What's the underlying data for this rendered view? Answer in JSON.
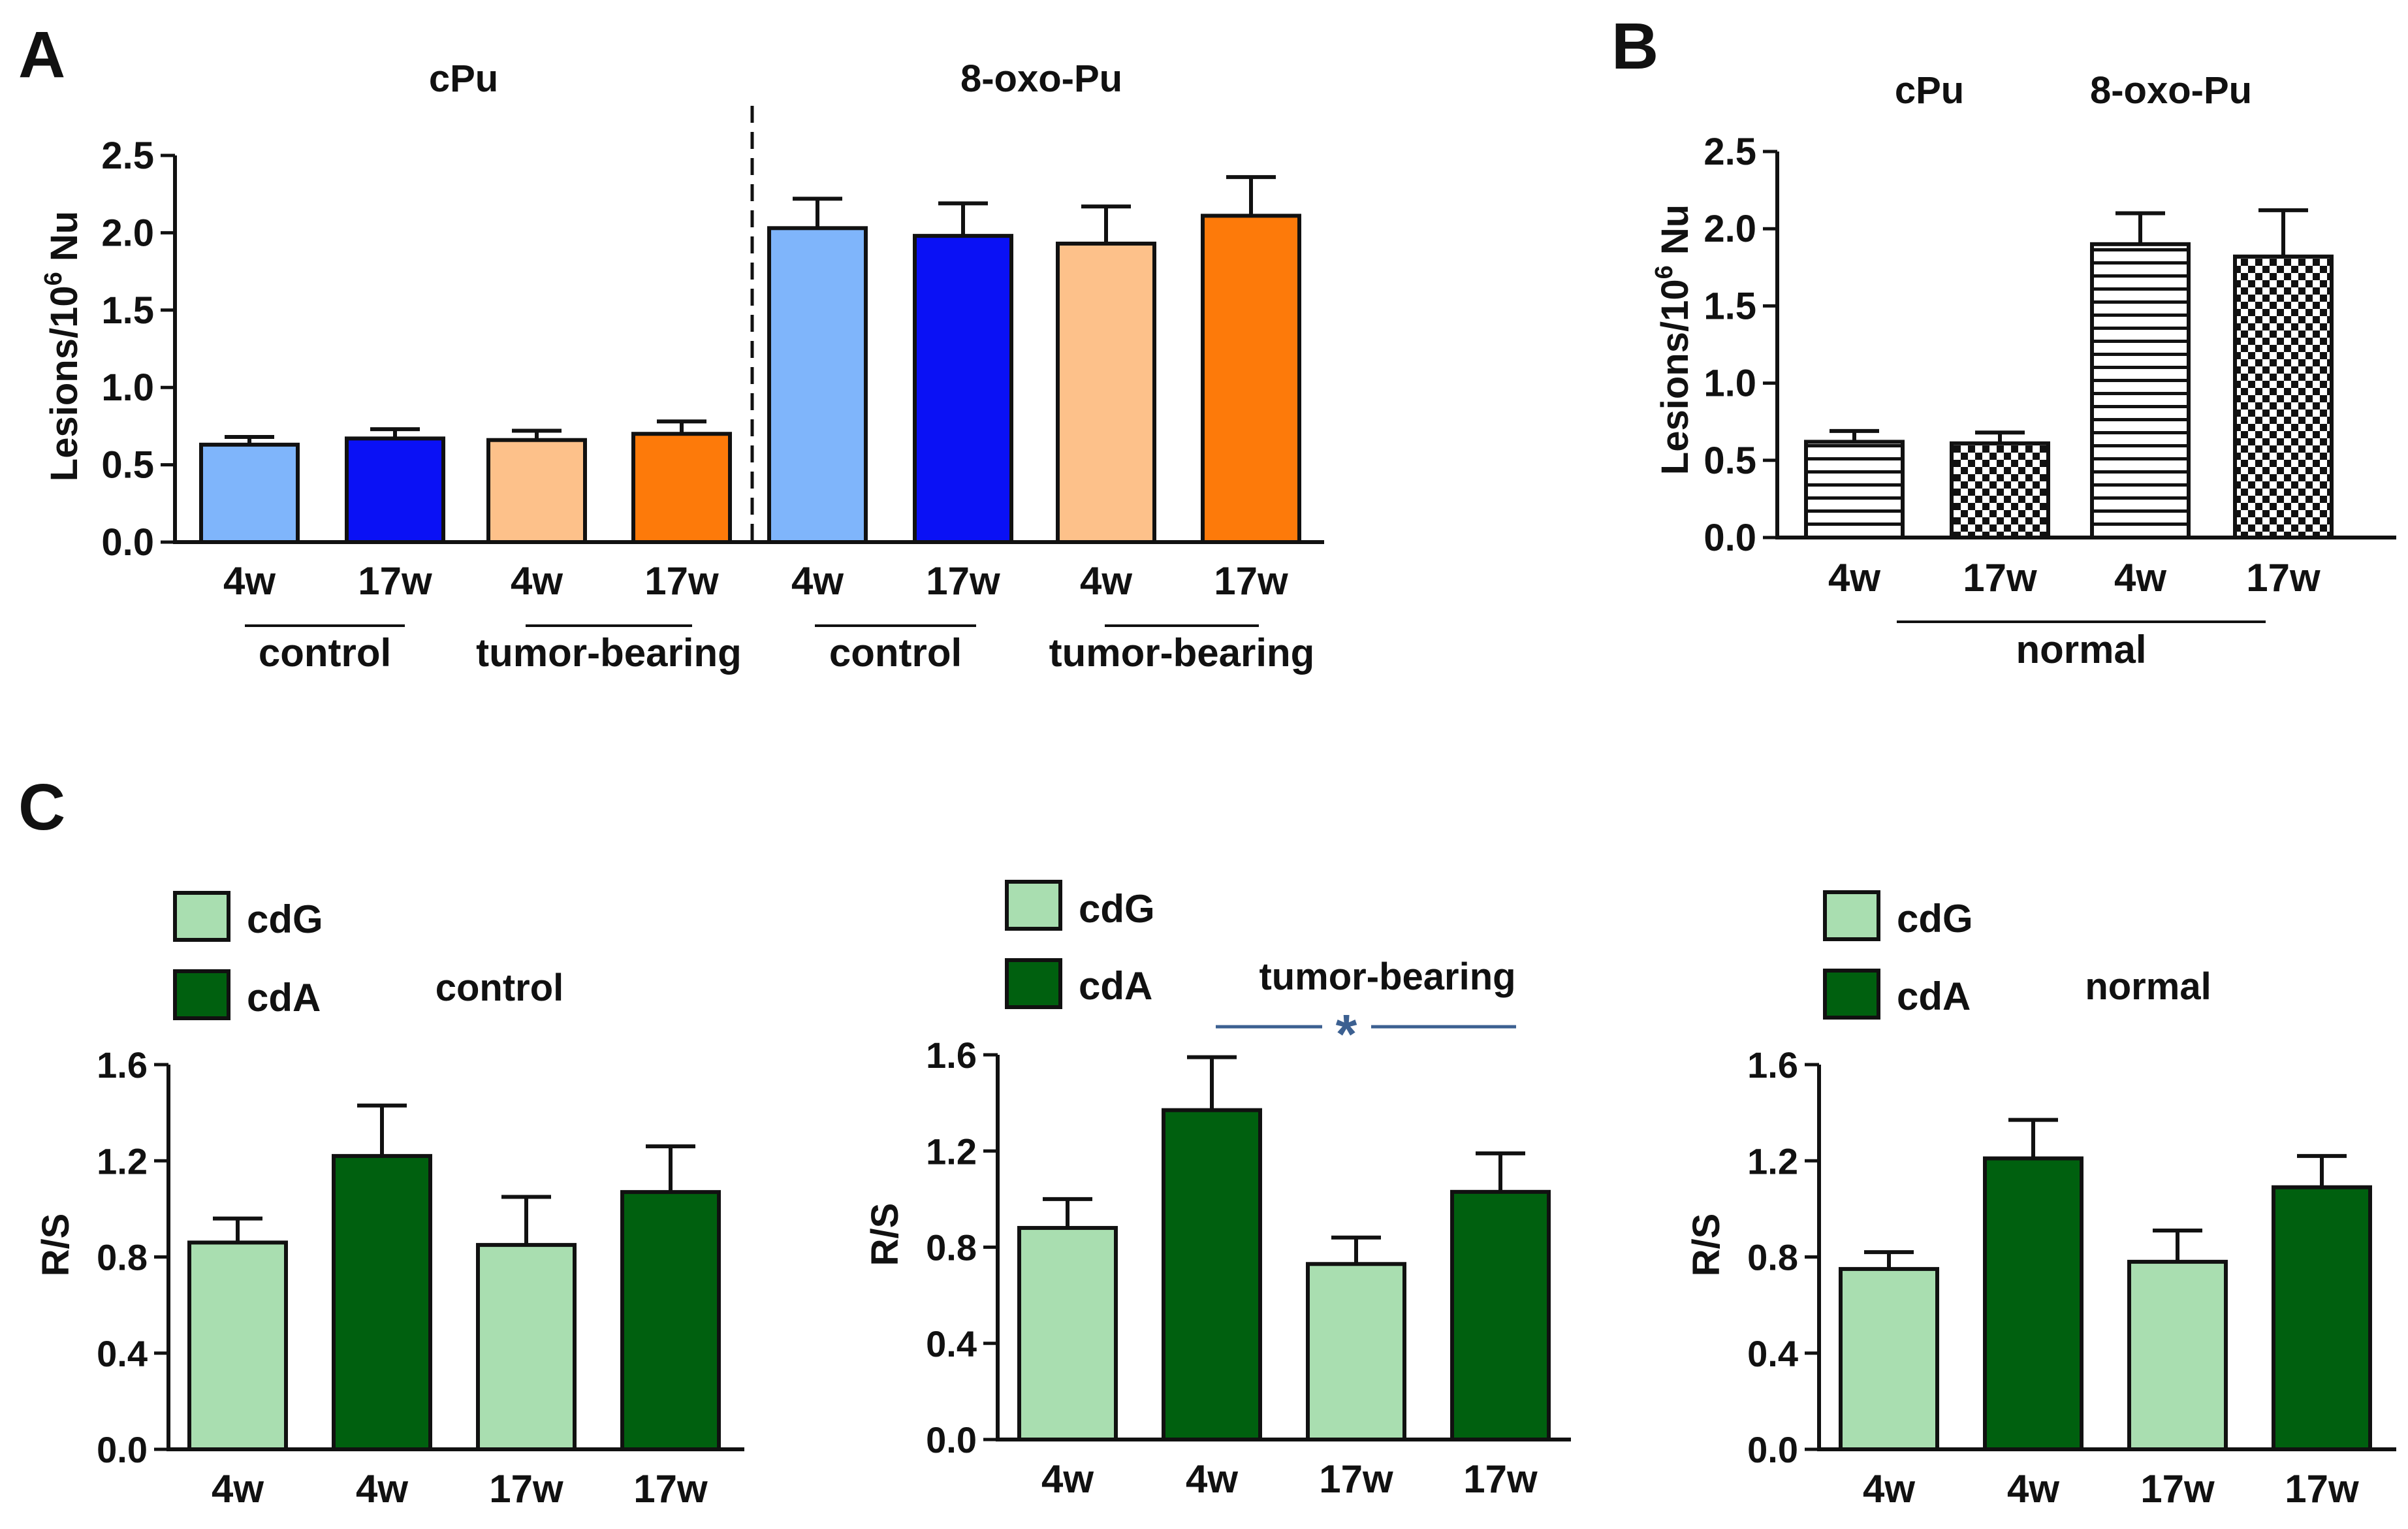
{
  "panels": {
    "A": {
      "letter": "A"
    },
    "B": {
      "letter": "B"
    },
    "C": {
      "letter": "C"
    }
  },
  "colors": {
    "light_blue": "#7fb5fb",
    "blue": "#0a11f5",
    "light_orange": "#fdc18a",
    "orange": "#fd7a0a",
    "light_green": "#a9deb0",
    "dark_green": "#00600f",
    "significance": "#3c6091",
    "axis": "#111111"
  },
  "chart_data": [
    {
      "id": "A",
      "type": "bar",
      "ylabel_main": "Lesions/10",
      "ylabel_sup": "6",
      "ylabel_tail": " Nu",
      "ylim": [
        0,
        2.5
      ],
      "yticks": [
        "0.0",
        "0.5",
        "1.0",
        "1.5",
        "2.0",
        "2.5"
      ],
      "section_titles": [
        "cPu",
        "8-oxo-Pu"
      ],
      "categories": [
        "4w",
        "17w",
        "4w",
        "17w",
        "4w",
        "17w",
        "4w",
        "17w"
      ],
      "groups": [
        "control",
        "tumor-bearing",
        "control",
        "tumor-bearing"
      ],
      "values": [
        0.63,
        0.67,
        0.66,
        0.7,
        2.03,
        1.98,
        1.93,
        2.11
      ],
      "errors": [
        0.05,
        0.06,
        0.06,
        0.08,
        0.19,
        0.21,
        0.24,
        0.25
      ],
      "bar_colors": [
        "light_blue",
        "blue",
        "light_orange",
        "orange",
        "light_blue",
        "blue",
        "light_orange",
        "orange"
      ]
    },
    {
      "id": "B",
      "type": "bar",
      "ylabel_main": "Lesions/10",
      "ylabel_sup": "6",
      "ylabel_tail": " Nu",
      "ylim": [
        0,
        2.5
      ],
      "yticks": [
        "0.0",
        "0.5",
        "1.0",
        "1.5",
        "2.0",
        "2.5"
      ],
      "section_titles": [
        "cPu",
        "8-oxo-Pu"
      ],
      "categories": [
        "4w",
        "17w",
        "4w",
        "17w"
      ],
      "groups": [
        "normal"
      ],
      "values": [
        0.62,
        0.61,
        1.9,
        1.82
      ],
      "errors": [
        0.07,
        0.07,
        0.2,
        0.3
      ],
      "patterns": [
        "horizontal-stripes",
        "checkerboard",
        "horizontal-stripes",
        "checkerboard"
      ]
    },
    {
      "id": "C1",
      "type": "bar",
      "title": "control",
      "ylabel": "R/S",
      "ylim": [
        0,
        1.6
      ],
      "yticks": [
        "0.0",
        "0.4",
        "0.8",
        "1.2",
        "1.6"
      ],
      "legend": [
        "cdG",
        "cdA"
      ],
      "categories": [
        "4w",
        "4w",
        "17w",
        "17w"
      ],
      "values": [
        0.86,
        1.22,
        0.85,
        1.07
      ],
      "errors": [
        0.1,
        0.21,
        0.2,
        0.19
      ],
      "bar_colors": [
        "light_green",
        "dark_green",
        "light_green",
        "dark_green"
      ]
    },
    {
      "id": "C2",
      "type": "bar",
      "title": "tumor-bearing",
      "ylabel": "R/S",
      "ylim": [
        0,
        1.6
      ],
      "yticks": [
        "0.0",
        "0.4",
        "0.8",
        "1.2",
        "1.6"
      ],
      "legend": [
        "cdG",
        "cdA"
      ],
      "categories": [
        "4w",
        "4w",
        "17w",
        "17w"
      ],
      "values": [
        0.88,
        1.37,
        0.73,
        1.03
      ],
      "errors": [
        0.12,
        0.22,
        0.11,
        0.16
      ],
      "bar_colors": [
        "light_green",
        "dark_green",
        "light_green",
        "dark_green"
      ],
      "significance": "*"
    },
    {
      "id": "C3",
      "type": "bar",
      "title": "normal",
      "ylabel": "R/S",
      "ylim": [
        0,
        1.6
      ],
      "yticks": [
        "0.0",
        "0.4",
        "0.8",
        "1.2",
        "1.6"
      ],
      "legend": [
        "cdG",
        "cdA"
      ],
      "categories": [
        "4w",
        "4w",
        "17w",
        "17w"
      ],
      "values": [
        0.75,
        1.21,
        0.78,
        1.09
      ],
      "errors": [
        0.07,
        0.16,
        0.13,
        0.13
      ],
      "bar_colors": [
        "light_green",
        "dark_green",
        "light_green",
        "dark_green"
      ]
    }
  ]
}
